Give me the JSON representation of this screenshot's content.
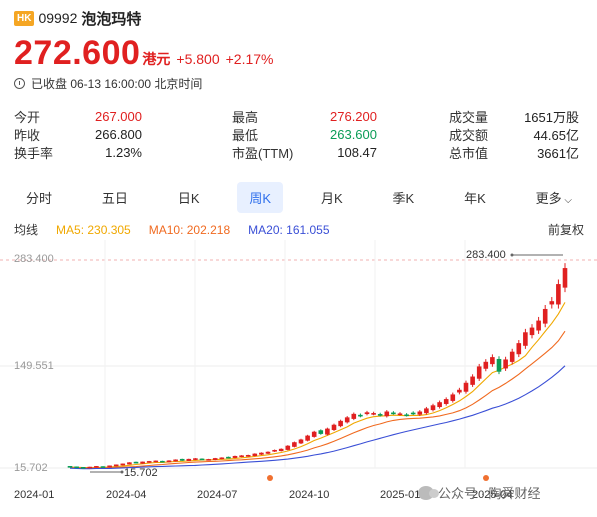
{
  "stock": {
    "market_badge": "HK",
    "code": "09992",
    "name": "泡泡玛特",
    "price": "272.600",
    "currency": "港元",
    "change": "+5.800",
    "change_pct": "+2.17%",
    "status": "已收盘 06-13 16:00:00 北京时间"
  },
  "stats": {
    "col1": [
      {
        "label": "今开",
        "value": "267.000",
        "color": "red"
      },
      {
        "label": "昨收",
        "value": "266.800",
        "color": ""
      },
      {
        "label": "换手率",
        "value": "1.23%",
        "color": ""
      }
    ],
    "col2": [
      {
        "label": "最高",
        "value": "276.200",
        "color": "red"
      },
      {
        "label": "最低",
        "value": "263.600",
        "color": "green"
      },
      {
        "label": "市盈(TTM)",
        "value": "108.47",
        "color": ""
      }
    ],
    "col3": [
      {
        "label": "成交量",
        "value": "1651万股",
        "color": ""
      },
      {
        "label": "成交额",
        "value": "44.65亿",
        "color": ""
      },
      {
        "label": "总市值",
        "value": "3661亿",
        "color": ""
      }
    ]
  },
  "tabs": [
    "分时",
    "五日",
    "日K",
    "周K",
    "月K",
    "季K",
    "年K",
    "更多"
  ],
  "active_tab": "周K",
  "ma": {
    "label": "均线",
    "ma5": "MA5: 230.305",
    "ma10": "MA10: 202.218",
    "ma20": "MA20: 161.055",
    "adjust": "前复权"
  },
  "chart_data": {
    "type": "candlestick",
    "y_labels": [
      "283.400",
      "149.551",
      "15.702"
    ],
    "x_labels": [
      "2024-01",
      "2024-04",
      "2024-07",
      "2024-10",
      "2025-01",
      "2025-04"
    ],
    "max_label": "283.400",
    "min_label": "15.702",
    "ylim": [
      15.702,
      283.4
    ],
    "colors": {
      "up": "#e02020",
      "down": "#0a9c56",
      "ma5": "#f0a800",
      "ma10": "#f06a20",
      "ma20": "#3a4fd6"
    },
    "closes": [
      17.5,
      16.8,
      16.2,
      16.9,
      17.8,
      17.2,
      18.5,
      19.8,
      21.0,
      22.6,
      22.0,
      23.5,
      24.2,
      24.8,
      23.9,
      25.0,
      26.2,
      25.5,
      27.0,
      27.8,
      27.2,
      26.8,
      28.0,
      28.8,
      29.5,
      30.8,
      31.5,
      32.0,
      33.8,
      35.0,
      36.2,
      38.5,
      40.0,
      44.0,
      48.5,
      52.0,
      57.0,
      62.0,
      60.0,
      66.0,
      71.0,
      76.0,
      80.5,
      85.0,
      83.0,
      87.0,
      86.0,
      84.0,
      88.0,
      86.5,
      85.5,
      84.0,
      86.0,
      88.0,
      92.0,
      96.0,
      100.0,
      104.0,
      110.0,
      116.0,
      125.0,
      133.0,
      146.0,
      152.0,
      158.0,
      140.0,
      155.0,
      165.0,
      176.0,
      190.0,
      196.0,
      205.0,
      220.0,
      230.0,
      252.0,
      272.6
    ],
    "ma5_end": 230.305,
    "ma10_end": 202.218,
    "ma20_end": 161.055
  },
  "watermark": "公众号 · 陶舜财经"
}
